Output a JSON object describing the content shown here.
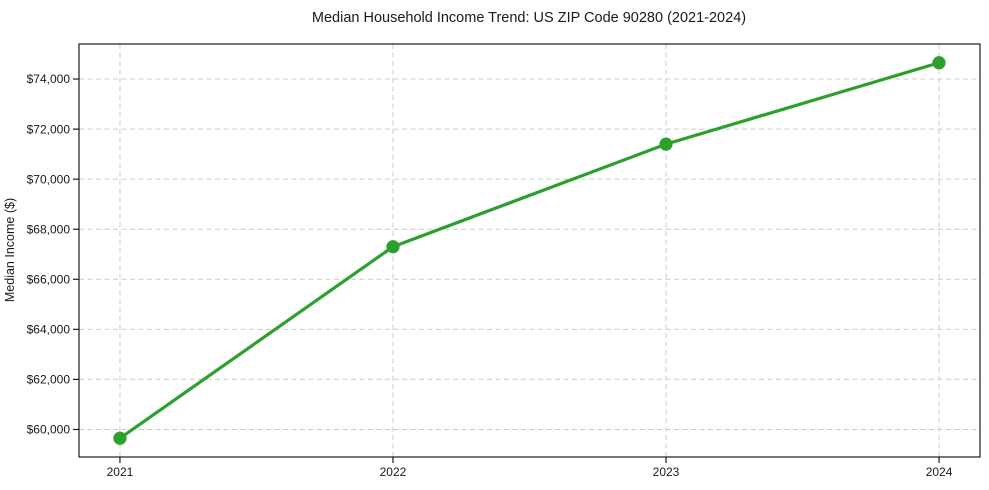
{
  "figure": {
    "background": "#ffffff"
  },
  "chart_data": {
    "type": "line",
    "title": "Median Household Income Trend: US ZIP Code 90280 (2021-2024)",
    "xlabel": "",
    "ylabel": "Median Income ($)",
    "x": [
      2021,
      2022,
      2023,
      2024
    ],
    "series": [
      {
        "name": "Median Household Income",
        "values": [
          59650,
          67300,
          71400,
          74650
        ]
      }
    ],
    "x_ticks": [
      {
        "value": 2021,
        "label": "2021"
      },
      {
        "value": 2022,
        "label": "2022"
      },
      {
        "value": 2023,
        "label": "2023"
      },
      {
        "value": 2024,
        "label": "2024"
      }
    ],
    "y_ticks": [
      {
        "value": 60000,
        "label": "$60,000"
      },
      {
        "value": 62000,
        "label": "$62,000"
      },
      {
        "value": 64000,
        "label": "$64,000"
      },
      {
        "value": 66000,
        "label": "$66,000"
      },
      {
        "value": 68000,
        "label": "$68,000"
      },
      {
        "value": 70000,
        "label": "$70,000"
      },
      {
        "value": 72000,
        "label": "$72,000"
      },
      {
        "value": 74000,
        "label": "$74,000"
      }
    ],
    "xlim": [
      2020.85,
      2024.15
    ],
    "ylim": [
      58900,
      75400
    ],
    "grid": true,
    "grid_style": "dashed",
    "legend_position": "none",
    "colors": {
      "line": "#2ca02c",
      "marker": "#2ca02c",
      "grid": "#cccccc",
      "spine": "#1a1a1a",
      "text": "#1a1a1a"
    },
    "line_width": 3.2,
    "marker_radius": 6.6
  }
}
